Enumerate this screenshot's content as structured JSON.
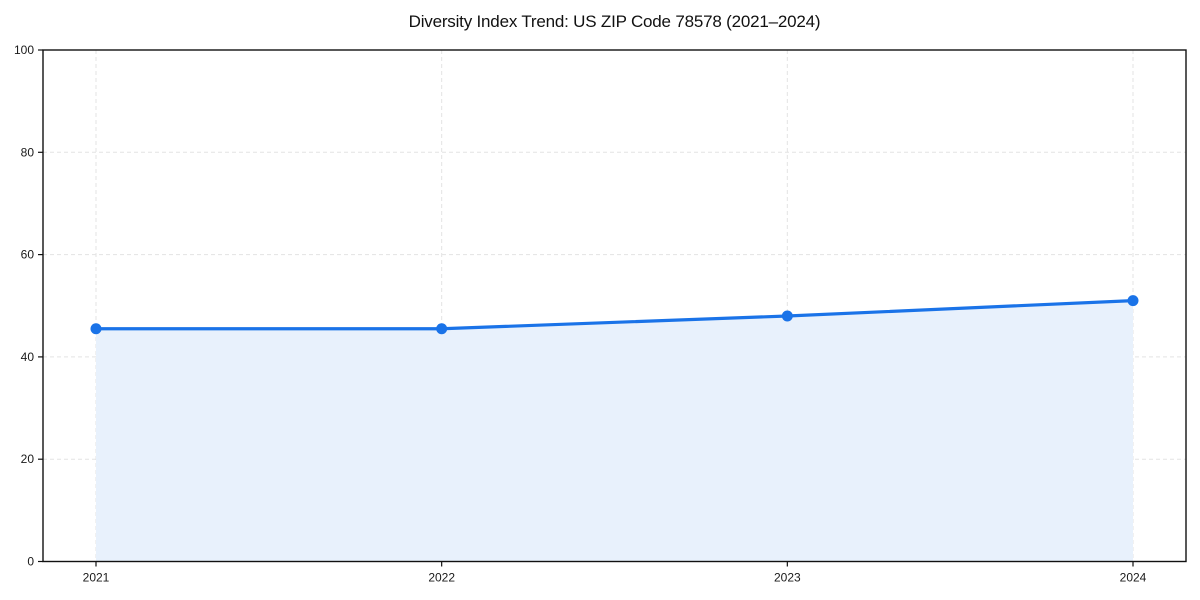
{
  "chart_data": {
    "type": "area",
    "title": "Diversity Index Trend: US ZIP Code 78578 (2021–2024)",
    "categories": [
      "2021",
      "2022",
      "2023",
      "2024"
    ],
    "series": [
      {
        "name": "Diversity Index",
        "values": [
          45.5,
          45.5,
          48,
          51
        ]
      }
    ],
    "xlabel": "",
    "ylabel": "",
    "ylim": [
      0,
      100
    ],
    "yticks": [
      0,
      20,
      40,
      60,
      80,
      100
    ],
    "grid": true,
    "grid_style": "dashed",
    "legend": false,
    "frame": "full-box",
    "colors": {
      "line": "#1a73e8",
      "marker": "#1a73e8",
      "fill": "#e8f1fc",
      "grid": "#e3e3e3",
      "frame": "#111111",
      "tick_text": "#1a1a1a",
      "background": "#ffffff"
    }
  }
}
